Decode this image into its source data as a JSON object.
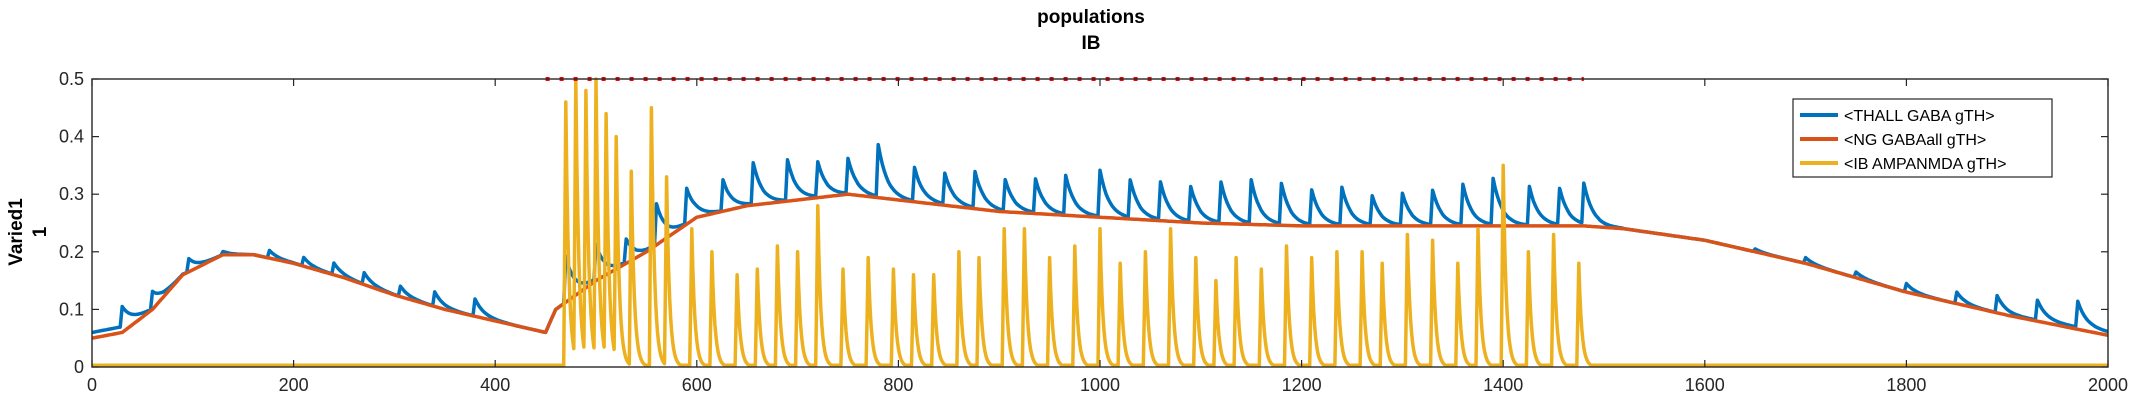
{
  "chart_data": {
    "type": "line",
    "title": [
      "populations",
      "IB"
    ],
    "ylabel": [
      "Varied1",
      "1"
    ],
    "xlabel": "",
    "xlim": [
      0,
      2000
    ],
    "ylim": [
      0,
      0.5
    ],
    "xticks": [
      0,
      200,
      400,
      600,
      800,
      1000,
      1200,
      1400,
      1600,
      1800,
      2000
    ],
    "yticks": [
      0,
      0.1,
      0.2,
      0.3,
      0.4,
      0.5
    ],
    "ytick_labels": [
      "0",
      "0.1",
      "0.2",
      "0.3",
      "0.4",
      "0.5"
    ],
    "grid": false,
    "legend_position": "top-right",
    "marker_line": {
      "y": 0.5,
      "x_start": 450,
      "x_end": 1480,
      "color": "#ff0000",
      "style": "dotted"
    },
    "series": [
      {
        "name": "<THALL GABA gTH>",
        "color": "#0072BD",
        "baseline": {
          "x": [
            0,
            30,
            60,
            90,
            130,
            160,
            200,
            250,
            300,
            350,
            400,
            450,
            460,
            500,
            550,
            600,
            650,
            700,
            750,
            800,
            900,
            1000,
            1100,
            1200,
            1300,
            1400,
            1480,
            1520,
            1600,
            1700,
            1800,
            1900,
            2000
          ],
          "y": [
            0.06,
            0.07,
            0.1,
            0.16,
            0.195,
            0.195,
            0.18,
            0.155,
            0.125,
            0.1,
            0.08,
            0.06,
            0.1,
            0.15,
            0.2,
            0.26,
            0.28,
            0.29,
            0.3,
            0.29,
            0.27,
            0.26,
            0.25,
            0.245,
            0.245,
            0.245,
            0.245,
            0.24,
            0.22,
            0.18,
            0.13,
            0.09,
            0.06
          ]
        },
        "spike_x": [
          30,
          60,
          95,
          130,
          175,
          210,
          240,
          270,
          305,
          340,
          380,
          470,
          500,
          530,
          560,
          590,
          625,
          655,
          690,
          720,
          750,
          780,
          815,
          845,
          875,
          905,
          935,
          965,
          1000,
          1030,
          1060,
          1090,
          1120,
          1150,
          1180,
          1210,
          1240,
          1270,
          1300,
          1330,
          1360,
          1390,
          1425,
          1455,
          1480,
          1650,
          1700,
          1750,
          1800,
          1850,
          1890,
          1930,
          1970
        ],
        "spike_h": [
          0.035,
          0.03,
          0.025,
          0.005,
          0.015,
          0.015,
          0.02,
          0.02,
          0.02,
          0.025,
          0.03,
          0.08,
          0.06,
          0.04,
          0.07,
          0.06,
          0.06,
          0.08,
          0.07,
          0.06,
          0.06,
          0.09,
          0.065,
          0.06,
          0.07,
          0.06,
          0.065,
          0.075,
          0.08,
          0.065,
          0.065,
          0.06,
          0.07,
          0.075,
          0.07,
          0.06,
          0.065,
          0.05,
          0.055,
          0.06,
          0.07,
          0.08,
          0.075,
          0.07,
          0.07,
          0.005,
          0.01,
          0.01,
          0.015,
          0.02,
          0.03,
          0.035,
          0.045
        ]
      },
      {
        "name": "<NG GABAall gTH>",
        "color": "#D95319",
        "baseline": {
          "x": [
            0,
            30,
            60,
            90,
            130,
            160,
            200,
            250,
            300,
            350,
            400,
            450,
            460,
            500,
            550,
            600,
            650,
            700,
            750,
            800,
            900,
            1000,
            1100,
            1200,
            1300,
            1400,
            1480,
            1520,
            1600,
            1700,
            1800,
            1900,
            2000
          ],
          "y": [
            0.05,
            0.06,
            0.1,
            0.16,
            0.195,
            0.195,
            0.18,
            0.155,
            0.125,
            0.1,
            0.08,
            0.06,
            0.1,
            0.15,
            0.2,
            0.26,
            0.28,
            0.29,
            0.3,
            0.29,
            0.27,
            0.26,
            0.25,
            0.245,
            0.245,
            0.245,
            0.245,
            0.24,
            0.22,
            0.18,
            0.13,
            0.09,
            0.055
          ]
        }
      },
      {
        "name": "<IB AMPANMDA gTH>",
        "color": "#EDB120",
        "base_level": 0.003,
        "spike_x": [
          470,
          480,
          490,
          500,
          510,
          520,
          535,
          555,
          570,
          595,
          615,
          640,
          660,
          680,
          700,
          720,
          745,
          770,
          795,
          815,
          835,
          860,
          880,
          905,
          925,
          950,
          975,
          1000,
          1020,
          1045,
          1070,
          1095,
          1115,
          1135,
          1160,
          1185,
          1210,
          1235,
          1260,
          1280,
          1305,
          1330,
          1355,
          1375,
          1400,
          1425,
          1450,
          1475
        ],
        "spike_h": [
          0.46,
          0.5,
          0.48,
          0.5,
          0.44,
          0.4,
          0.34,
          0.45,
          0.33,
          0.24,
          0.2,
          0.16,
          0.17,
          0.21,
          0.2,
          0.28,
          0.17,
          0.19,
          0.17,
          0.16,
          0.16,
          0.2,
          0.19,
          0.24,
          0.24,
          0.19,
          0.21,
          0.24,
          0.18,
          0.2,
          0.24,
          0.19,
          0.15,
          0.19,
          0.17,
          0.21,
          0.19,
          0.2,
          0.2,
          0.18,
          0.23,
          0.22,
          0.18,
          0.24,
          0.35,
          0.2,
          0.23,
          0.18
        ]
      }
    ]
  }
}
